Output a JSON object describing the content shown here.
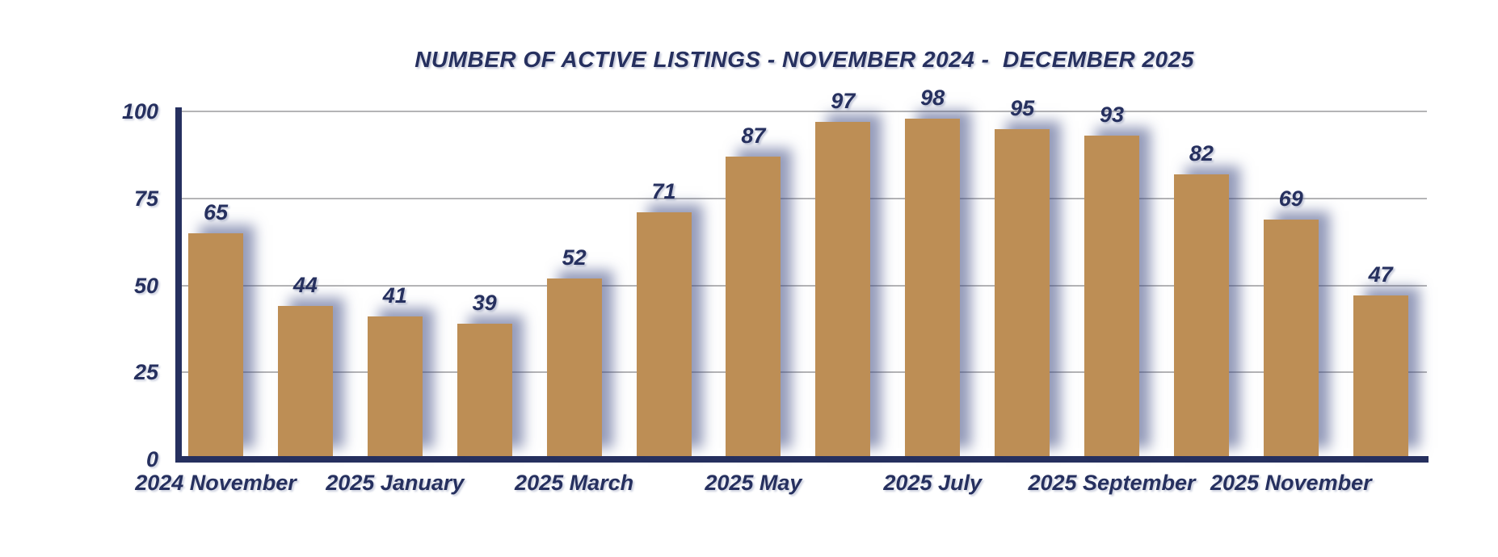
{
  "chart_data": {
    "type": "bar",
    "title": "NUMBER OF ACTIVE LISTINGS - NOVEMBER 2024 -  DECEMBER 2025",
    "values": [
      65,
      44,
      41,
      39,
      52,
      71,
      87,
      97,
      98,
      95,
      93,
      82,
      69,
      47
    ],
    "y_ticks": [
      0,
      25,
      50,
      75,
      100
    ],
    "ylim": [
      0,
      100
    ],
    "grid": true,
    "legend": "none",
    "data_labels_shown": true,
    "x_tick_labels": [
      {
        "bar_index": 0,
        "label": "2024 November"
      },
      {
        "bar_index": 2,
        "label": "2025 January"
      },
      {
        "bar_index": 4,
        "label": "2025 March"
      },
      {
        "bar_index": 6,
        "label": "2025 May"
      },
      {
        "bar_index": 8,
        "label": "2025 July"
      },
      {
        "bar_index": 10,
        "label": "2025 September"
      },
      {
        "bar_index": 12,
        "label": "2025 November"
      }
    ],
    "colors": {
      "bar": "#bd8e55",
      "bar_shadow": "rgba(60,72,130,0.55)",
      "axis": "#26305f",
      "text": "#26305f",
      "gridline": "#b4b4b6",
      "background": "#ffffff"
    }
  }
}
